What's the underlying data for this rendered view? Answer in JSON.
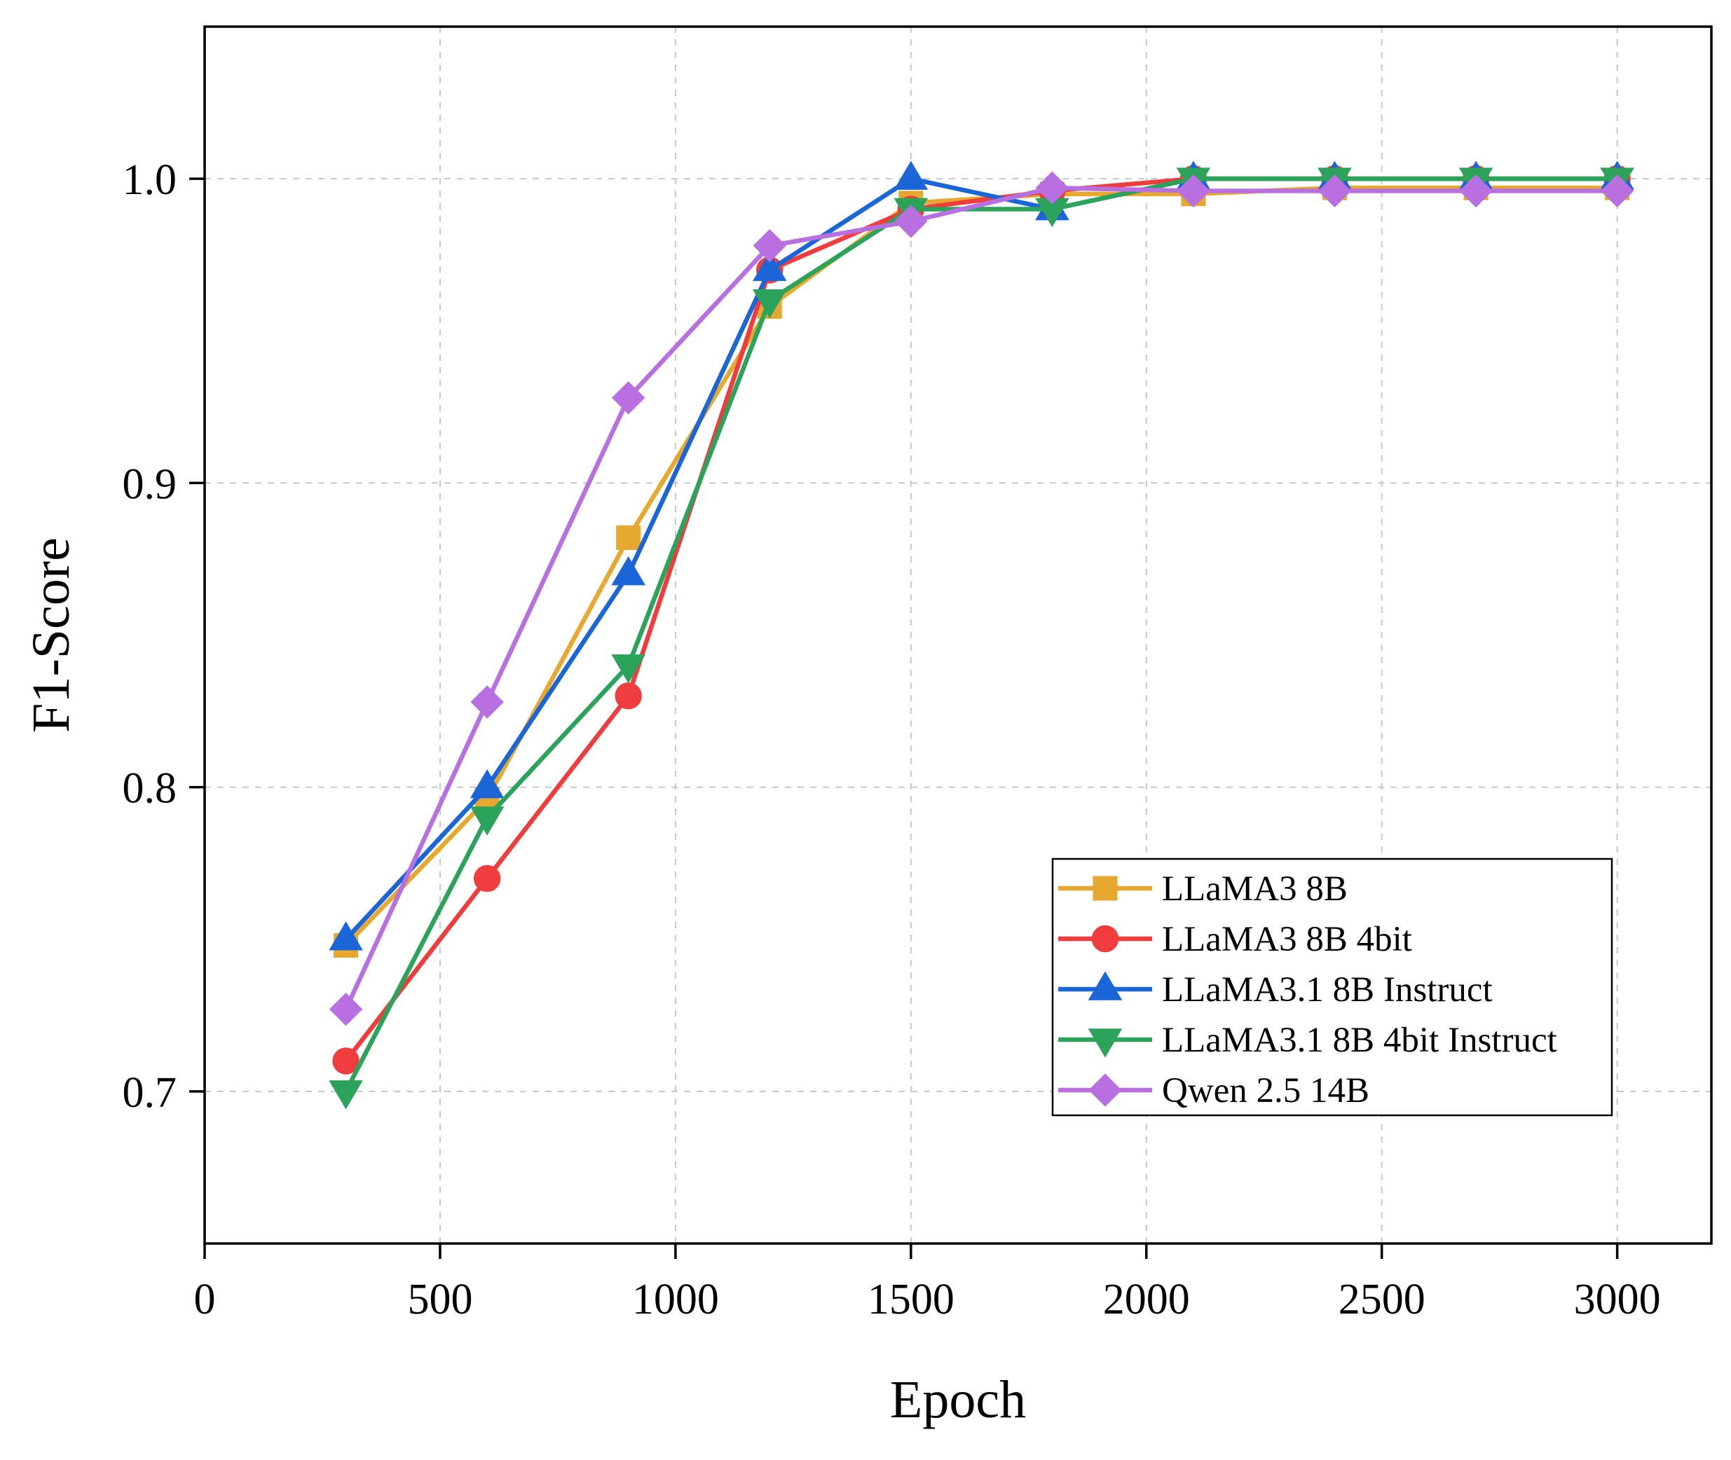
{
  "chart_data": {
    "type": "line",
    "title": "",
    "xlabel": "Epoch",
    "ylabel": "F1-Score",
    "xlim": [
      0,
      3200
    ],
    "ylim": [
      0.65,
      1.05
    ],
    "xticks": [
      0,
      500,
      1000,
      1500,
      2000,
      2500,
      3000
    ],
    "yticks": [
      0.7,
      0.8,
      0.9,
      1.0
    ],
    "ytick_labels": [
      "0.7",
      "0.8",
      "0.9",
      "1.0"
    ],
    "grid": true,
    "legend_position": "bottom-right",
    "x": [
      300,
      600,
      900,
      1200,
      1500,
      1800,
      2100,
      2400,
      2700,
      3000
    ],
    "series": [
      {
        "name": "LLaMA3 8B",
        "color": "#E6A82E",
        "marker": "square",
        "values": [
          0.748,
          0.796,
          0.882,
          0.958,
          0.992,
          0.995,
          0.995,
          0.997,
          0.997,
          0.997
        ]
      },
      {
        "name": "LLaMA3 8B 4bit",
        "color": "#F03C3C",
        "marker": "circle",
        "values": [
          0.71,
          0.77,
          0.83,
          0.97,
          0.99,
          0.996,
          1.0,
          1.0,
          1.0,
          1.0
        ]
      },
      {
        "name": "LLaMA3.1 8B Instruct",
        "color": "#1A66D9",
        "marker": "triangle-up",
        "values": [
          0.75,
          0.8,
          0.87,
          0.97,
          1.0,
          0.99,
          1.0,
          1.0,
          1.0,
          1.0
        ]
      },
      {
        "name": "LLaMA3.1 8B 4bit Instruct",
        "color": "#2CA35A",
        "marker": "triangle-down",
        "values": [
          0.7,
          0.79,
          0.84,
          0.96,
          0.99,
          0.99,
          1.0,
          1.0,
          1.0,
          1.0
        ]
      },
      {
        "name": "Qwen 2.5 14B",
        "color": "#B86FE0",
        "marker": "diamond",
        "values": [
          0.727,
          0.828,
          0.928,
          0.978,
          0.986,
          0.997,
          0.996,
          0.996,
          0.996,
          0.996
        ]
      }
    ]
  }
}
